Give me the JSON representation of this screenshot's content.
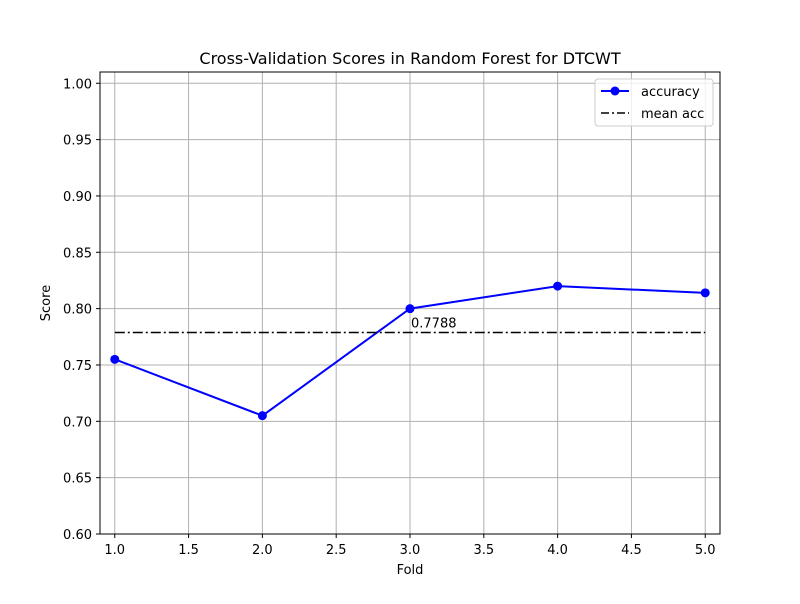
{
  "chart_data": {
    "type": "line",
    "title": "Cross-Validation Scores in Random Forest for DTCWT",
    "xlabel": "Fold",
    "ylabel": "Score",
    "xlim": [
      0.9,
      5.1
    ],
    "ylim": [
      0.6,
      1.01
    ],
    "x_ticks": [
      1.0,
      1.5,
      2.0,
      2.5,
      3.0,
      3.5,
      4.0,
      4.5,
      5.0
    ],
    "x_tick_labels": [
      "1.0",
      "1.5",
      "2.0",
      "2.5",
      "3.0",
      "3.5",
      "4.0",
      "4.5",
      "5.0"
    ],
    "y_ticks": [
      0.6,
      0.65,
      0.7,
      0.75,
      0.8,
      0.85,
      0.9,
      0.95,
      1.0
    ],
    "y_tick_labels": [
      "0.60",
      "0.65",
      "0.70",
      "0.75",
      "0.80",
      "0.85",
      "0.90",
      "0.95",
      "1.00"
    ],
    "grid": true,
    "legend_position": "top-right",
    "series": [
      {
        "name": "accuracy",
        "x": [
          1,
          2,
          3,
          4,
          5
        ],
        "values": [
          0.755,
          0.705,
          0.8,
          0.82,
          0.814
        ],
        "color": "#0000ff",
        "style": "solid",
        "marker": "circle"
      },
      {
        "name": "mean acc",
        "x": [
          1,
          5
        ],
        "values": [
          0.7788,
          0.7788
        ],
        "color": "#000000",
        "style": "dashdot",
        "marker": "none"
      }
    ],
    "annotations": [
      {
        "text": "0.7788",
        "x": 3,
        "y": 0.7788
      }
    ]
  }
}
